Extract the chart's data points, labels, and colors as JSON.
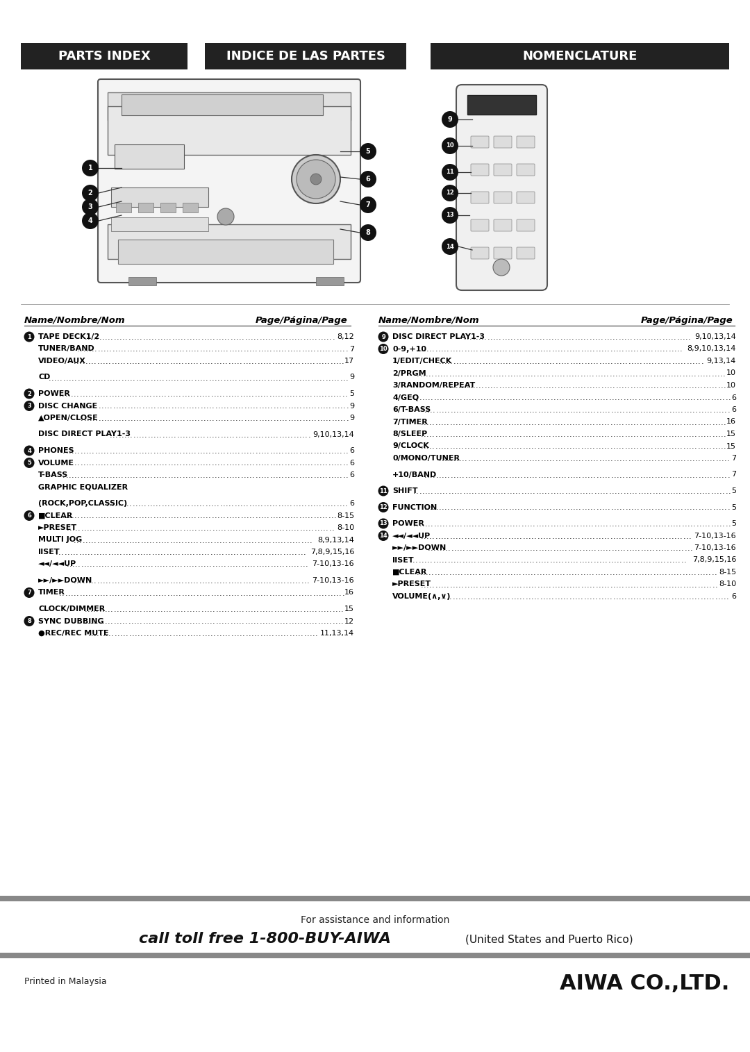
{
  "header_titles": [
    "PARTS INDEX",
    "INDICE DE LAS PARTES",
    "NOMENCLATURE"
  ],
  "header_bg": "#2a2a2a",
  "header_text_color": "#ffffff",
  "page_bg": "#ffffff",
  "col1_header": "Name/Nombre/Nom",
  "col2_header": "Page/Página/Page",
  "col3_header": "Name/Nombre/Nom",
  "col4_header": "Page/Página/Page",
  "left_entries": [
    {
      "num": "1",
      "bold": true,
      "indent": false,
      "text": "TAPE DECK1/2",
      "page": "8,12",
      "gap": true
    },
    {
      "num": "",
      "bold": true,
      "indent": true,
      "text": "TUNER/BAND",
      "page": "7",
      "gap": false
    },
    {
      "num": "",
      "bold": true,
      "indent": true,
      "text": "VIDEO/AUX",
      "page": "17",
      "gap": false
    },
    {
      "num": "",
      "bold": true,
      "indent": true,
      "text": "CD",
      "page": "9",
      "gap": true
    },
    {
      "num": "2",
      "bold": true,
      "indent": false,
      "text": "POWER",
      "page": "5",
      "gap": true
    },
    {
      "num": "3",
      "bold": true,
      "indent": false,
      "text": "DISC CHANGE",
      "page": "9",
      "gap": false
    },
    {
      "num": "",
      "bold": true,
      "indent": true,
      "text": "▲OPEN/CLOSE",
      "page": "9",
      "gap": false
    },
    {
      "num": "",
      "bold": true,
      "indent": true,
      "text": "DISC DIRECT PLAY1-3",
      "page": "9,10,13,14",
      "gap": true
    },
    {
      "num": "4",
      "bold": true,
      "indent": false,
      "text": "PHONES",
      "page": "6",
      "gap": true
    },
    {
      "num": "5",
      "bold": true,
      "indent": false,
      "text": "VOLUME",
      "page": "6",
      "gap": false
    },
    {
      "num": "",
      "bold": true,
      "indent": true,
      "text": "T-BASS",
      "page": "6",
      "gap": false
    },
    {
      "num": "",
      "bold": true,
      "indent": true,
      "text": "GRAPHIC EQUALIZER",
      "page": "",
      "gap": false
    },
    {
      "num": "",
      "bold": true,
      "indent": true,
      "text": "(ROCK,POP,CLASSIC)",
      "page": "6",
      "gap": true
    },
    {
      "num": "6",
      "bold": true,
      "indent": false,
      "text": "■CLEAR",
      "page": "8-15",
      "gap": false
    },
    {
      "num": "",
      "bold": true,
      "indent": true,
      "text": "►PRESET",
      "page": "8-10",
      "gap": false
    },
    {
      "num": "",
      "bold": true,
      "indent": true,
      "text": "MULTI JOG",
      "page": "8,9,13,14",
      "gap": false
    },
    {
      "num": "",
      "bold": true,
      "indent": true,
      "text": "ⅡSET",
      "page": "7,8,9,15,16",
      "gap": false
    },
    {
      "num": "",
      "bold": true,
      "indent": true,
      "text": "◄◄/◄◄UP",
      "page": "7-10,13-16",
      "gap": false
    },
    {
      "num": "",
      "bold": true,
      "indent": true,
      "text": "►►/►►DOWN",
      "page": "7-10,13-16",
      "gap": true
    },
    {
      "num": "7",
      "bold": true,
      "indent": false,
      "text": "TIMER",
      "page": "16",
      "gap": false
    },
    {
      "num": "",
      "bold": true,
      "indent": true,
      "text": "CLOCK/DIMMER",
      "page": "15",
      "gap": true
    },
    {
      "num": "8",
      "bold": true,
      "indent": false,
      "text": "SYNC DUBBING",
      "page": "12",
      "gap": false
    },
    {
      "num": "",
      "bold": true,
      "indent": true,
      "text": "●REC/REC MUTE",
      "page": "11,13,14",
      "gap": false
    }
  ],
  "right_entries": [
    {
      "num": "9",
      "bold": true,
      "indent": false,
      "text": "DISC DIRECT PLAY1-3",
      "page": "9,10,13,14",
      "gap": true
    },
    {
      "num": "10",
      "bold": true,
      "indent": false,
      "text": "0-9,+10",
      "page": "8,9,10,13,14",
      "gap": false
    },
    {
      "num": "",
      "bold": true,
      "indent": true,
      "text": "1/EDIT/CHECK",
      "page": "9,13,14",
      "gap": false
    },
    {
      "num": "",
      "bold": true,
      "indent": true,
      "text": "2/PRGM",
      "page": "10",
      "gap": false
    },
    {
      "num": "",
      "bold": true,
      "indent": true,
      "text": "3/RANDOM/REPEAT",
      "page": "10",
      "gap": false
    },
    {
      "num": "",
      "bold": true,
      "indent": true,
      "text": "4/GEQ",
      "page": "6",
      "gap": false
    },
    {
      "num": "",
      "bold": true,
      "indent": true,
      "text": "6/T-BASS",
      "page": "6",
      "gap": false
    },
    {
      "num": "",
      "bold": true,
      "indent": true,
      "text": "7/TIMER",
      "page": "16",
      "gap": false
    },
    {
      "num": "",
      "bold": true,
      "indent": true,
      "text": "8/SLEEP",
      "page": "15",
      "gap": false
    },
    {
      "num": "",
      "bold": true,
      "indent": true,
      "text": "9/CLOCK",
      "page": "15",
      "gap": false
    },
    {
      "num": "",
      "bold": true,
      "indent": true,
      "text": "0/MONO/TUNER",
      "page": "7",
      "gap": false
    },
    {
      "num": "",
      "bold": true,
      "indent": true,
      "text": "+10/BAND",
      "page": "7",
      "gap": true
    },
    {
      "num": "11",
      "bold": true,
      "indent": false,
      "text": "SHIFT",
      "page": "5",
      "gap": true
    },
    {
      "num": "12",
      "bold": true,
      "indent": false,
      "text": "FUNCTION",
      "page": "5",
      "gap": true
    },
    {
      "num": "13",
      "bold": true,
      "indent": false,
      "text": "POWER",
      "page": "5",
      "gap": true
    },
    {
      "num": "14",
      "bold": true,
      "indent": false,
      "text": "◄◄/◄◄UP",
      "page": "7-10,13-16",
      "gap": false
    },
    {
      "num": "",
      "bold": true,
      "indent": true,
      "text": "►►/►►DOWN",
      "page": "7-10,13-16",
      "gap": false
    },
    {
      "num": "",
      "bold": true,
      "indent": true,
      "text": "ⅡSET",
      "page": "7,8,9,15,16",
      "gap": false
    },
    {
      "num": "",
      "bold": true,
      "indent": true,
      "text": "■CLEAR",
      "page": "8-15",
      "gap": false
    },
    {
      "num": "",
      "bold": true,
      "indent": true,
      "text": "►PRESET",
      "page": "8-10",
      "gap": false
    },
    {
      "num": "",
      "bold": true,
      "indent": true,
      "text": "VOLUME(∧,∨)",
      "page": "6",
      "gap": false
    }
  ],
  "footer_text1": "For assistance and information",
  "footer_text2_italic": "call toll free 1-800-BUY-AIWA",
  "footer_text2_normal": "(United States and Puerto Rico)",
  "footer_bottom_left": "Printed in Malaysia",
  "footer_bottom_right": "AIWA CO.,LTD."
}
